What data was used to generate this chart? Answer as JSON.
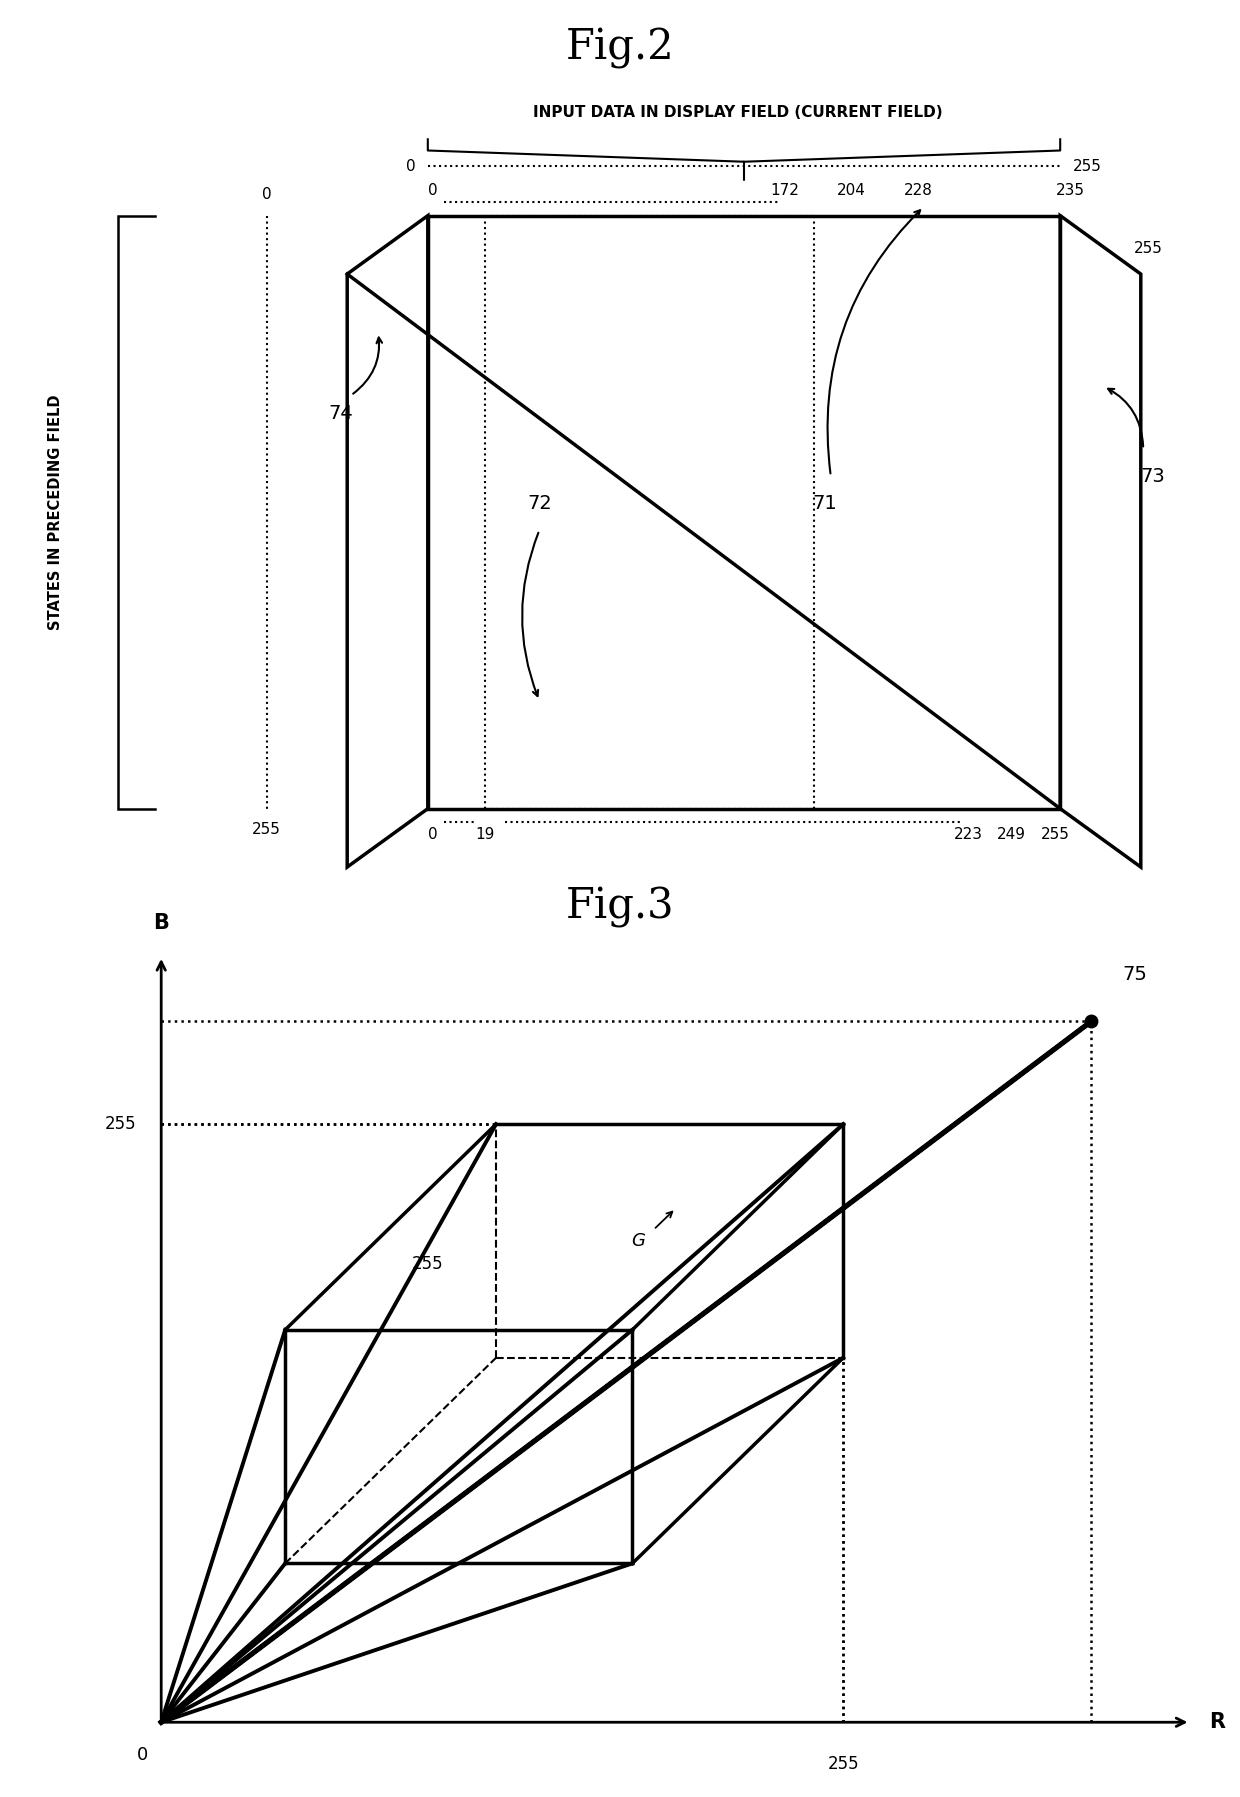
{
  "fig2_title": "Fig.2",
  "fig3_title": "Fig.3",
  "top_label": "INPUT DATA IN DISPLAY FIELD (CURRENT FIELD)",
  "left_label": "STATES IN PRECEDING FIELD",
  "lw_thick": 2.5,
  "lw_dot": 1.5,
  "background_color": "#ffffff"
}
